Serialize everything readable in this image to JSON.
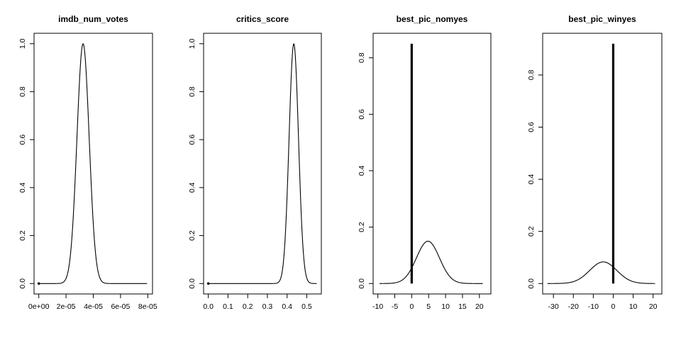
{
  "chart_data": [
    {
      "type": "line",
      "title": "imdb_num_votes",
      "xlabel": "",
      "ylabel": "",
      "xlim": [
        0,
        8e-05
      ],
      "ylim": [
        0,
        1
      ],
      "x_ticks": [
        0,
        2e-05,
        4e-05,
        6e-05,
        8e-05
      ],
      "x_tick_labels": [
        "0e+00",
        "2e-05",
        "4e-05",
        "6e-05",
        "8e-05"
      ],
      "y_ticks": [
        0,
        0.2,
        0.4,
        0.6,
        0.8,
        1
      ],
      "y_tick_labels": [
        "0.0",
        "0.2",
        "0.4",
        "0.6",
        "0.8",
        "1.0"
      ],
      "posterior_inclusion_prob": 1.0,
      "spike_at_zero": 0,
      "density": {
        "mean": 3.25e-05,
        "sd": 4.5e-06,
        "peak": 1.0,
        "x_range": [
          0,
          7.95e-05
        ]
      }
    },
    {
      "type": "line",
      "title": "critics_score",
      "xlabel": "",
      "ylabel": "",
      "xlim": [
        0,
        0.55
      ],
      "ylim": [
        0,
        1
      ],
      "x_ticks": [
        0,
        0.1,
        0.2,
        0.3,
        0.4,
        0.5
      ],
      "x_tick_labels": [
        "0.0",
        "0.1",
        "0.2",
        "0.3",
        "0.4",
        "0.5"
      ],
      "y_ticks": [
        0,
        0.2,
        0.4,
        0.6,
        0.8,
        1
      ],
      "y_tick_labels": [
        "0.0",
        "0.2",
        "0.4",
        "0.6",
        "0.8",
        "1.0"
      ],
      "posterior_inclusion_prob": 1.0,
      "spike_at_zero": 0,
      "density": {
        "mean": 0.434,
        "sd": 0.024,
        "peak": 1.0,
        "x_range": [
          0,
          0.55
        ]
      }
    },
    {
      "type": "line",
      "title": "best_pic_nomyes",
      "xlabel": "",
      "ylabel": "",
      "xlim": [
        -10,
        22
      ],
      "ylim": [
        0,
        0.85
      ],
      "x_ticks": [
        -10,
        -5,
        0,
        5,
        10,
        15,
        20
      ],
      "x_tick_labels": [
        "-10",
        "-5",
        "0",
        "5",
        "10",
        "15",
        "20"
      ],
      "y_ticks": [
        0,
        0.2,
        0.4,
        0.6,
        0.8
      ],
      "y_tick_labels": [
        "0.0",
        "0.2",
        "0.4",
        "0.6",
        "0.8"
      ],
      "spike_at_zero": 0.85,
      "density": {
        "mean": 4.8,
        "sd": 3.4,
        "peak": 0.15,
        "x_range": [
          -9.5,
          21
        ]
      }
    },
    {
      "type": "line",
      "title": "best_pic_winyes",
      "xlabel": "",
      "ylabel": "",
      "xlim": [
        -33,
        22
      ],
      "ylim": [
        0,
        0.92
      ],
      "x_ticks": [
        -30,
        -20,
        -10,
        0,
        10,
        20
      ],
      "x_tick_labels": [
        "-30",
        "-20",
        "-10",
        "0",
        "10",
        "20"
      ],
      "y_ticks": [
        0,
        0.2,
        0.4,
        0.6,
        0.8
      ],
      "y_tick_labels": [
        "0.0",
        "0.2",
        "0.4",
        "0.6",
        "0.8"
      ],
      "spike_at_zero": 0.92,
      "density": {
        "mean": -5,
        "sd": 6.8,
        "peak": 0.083,
        "x_range": [
          -33,
          21
        ]
      }
    }
  ]
}
